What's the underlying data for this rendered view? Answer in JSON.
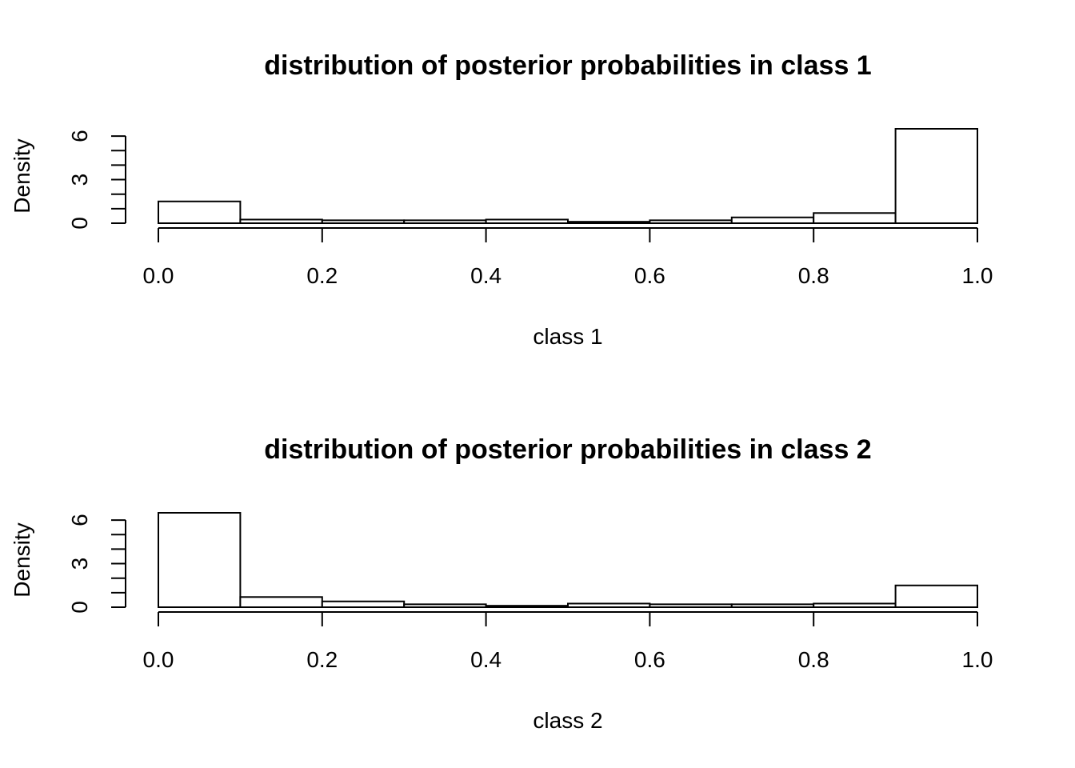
{
  "chart_data": [
    {
      "type": "histogram",
      "title": "distribution of posterior probabilities in class 1",
      "xlabel": "class 1",
      "ylabel": "Density",
      "xlim": [
        0,
        1
      ],
      "ylim": [
        0,
        6.5
      ],
      "x_ticks": [
        "0.0",
        "0.2",
        "0.4",
        "0.6",
        "0.8",
        "1.0"
      ],
      "y_ticks": [
        "0",
        "3",
        "6"
      ],
      "bin_edges": [
        0,
        0.1,
        0.2,
        0.3,
        0.4,
        0.5,
        0.6,
        0.7,
        0.8,
        0.9,
        1.0
      ],
      "values": [
        1.5,
        0.25,
        0.2,
        0.2,
        0.25,
        0.1,
        0.2,
        0.4,
        0.7,
        6.5
      ]
    },
    {
      "type": "histogram",
      "title": "distribution of posterior probabilities in class 2",
      "xlabel": "class 2",
      "ylabel": "Density",
      "xlim": [
        0,
        1
      ],
      "ylim": [
        0,
        6.5
      ],
      "x_ticks": [
        "0.0",
        "0.2",
        "0.4",
        "0.6",
        "0.8",
        "1.0"
      ],
      "y_ticks": [
        "0",
        "3",
        "6"
      ],
      "bin_edges": [
        0,
        0.1,
        0.2,
        0.3,
        0.4,
        0.5,
        0.6,
        0.7,
        0.8,
        0.9,
        1.0
      ],
      "values": [
        6.5,
        0.7,
        0.4,
        0.2,
        0.1,
        0.25,
        0.2,
        0.2,
        0.25,
        1.5
      ]
    }
  ]
}
